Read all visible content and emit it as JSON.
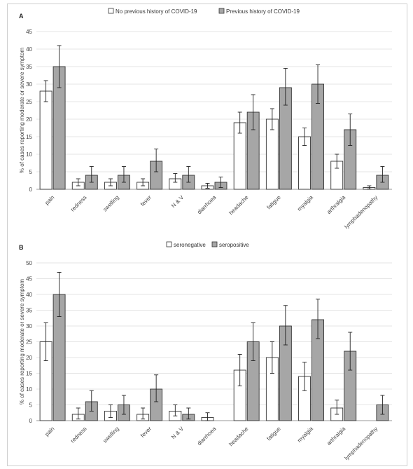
{
  "chart_data": [
    {
      "panel": "A",
      "type": "bar",
      "ylabel": "% of cases reporting moderate or severe symptom",
      "ylim": [
        0,
        45
      ],
      "yticks": [
        0,
        5,
        10,
        15,
        20,
        25,
        30,
        35,
        40,
        45
      ],
      "legend_position": "top",
      "categories": [
        "pain",
        "redness",
        "swelling",
        "fever",
        "N & V",
        "diarrhoea",
        "headache",
        "fatigue",
        "myalgia",
        "arthralgia",
        "lymphadenopathy"
      ],
      "series": [
        {
          "name": "No previous history of COVID-19",
          "color": "#ffffff",
          "values": [
            28,
            2,
            2,
            2,
            3,
            1,
            19,
            20,
            15,
            8,
            0.5
          ],
          "err_low": [
            25,
            1,
            1,
            1,
            2,
            0.3,
            16,
            17,
            12.5,
            6,
            0.1
          ],
          "err_high": [
            31,
            3,
            3,
            3,
            4.5,
            1.7,
            22,
            23,
            17.5,
            10,
            1
          ]
        },
        {
          "name": "Previous history of COVID-19",
          "color": "#a6a6a6",
          "values": [
            35,
            4,
            4,
            8,
            4,
            2,
            22,
            29,
            30,
            17,
            4
          ],
          "err_low": [
            29,
            2,
            2,
            5,
            2,
            0.5,
            17,
            24,
            24.5,
            12.5,
            2
          ],
          "err_high": [
            41,
            6.5,
            6.5,
            11.5,
            6.5,
            3.5,
            27,
            34.5,
            35.5,
            21.5,
            6.5
          ]
        }
      ]
    },
    {
      "panel": "B",
      "type": "bar",
      "ylabel": "% of cases reporting moderate or severe symptom",
      "ylim": [
        0,
        50
      ],
      "yticks": [
        0,
        5,
        10,
        15,
        20,
        25,
        30,
        35,
        40,
        45,
        50
      ],
      "legend_position": "top",
      "categories": [
        "pain",
        "redness",
        "swelling",
        "fever",
        "N & V",
        "diarrhoea",
        "headache",
        "fatigue",
        "myalgia",
        "arthralgia",
        "lymphadenopathy"
      ],
      "series": [
        {
          "name": "seronegative",
          "color": "#ffffff",
          "values": [
            25,
            2,
            3,
            2,
            3,
            1,
            16,
            20,
            14,
            4,
            0
          ],
          "err_low": [
            19,
            0.5,
            1,
            0.5,
            1.5,
            0,
            11,
            15,
            9.5,
            2,
            0
          ],
          "err_high": [
            31,
            4,
            5,
            4,
            5,
            2.5,
            21,
            25,
            18.5,
            6.5,
            0
          ]
        },
        {
          "name": "seropositive",
          "color": "#a6a6a6",
          "values": [
            40,
            6,
            5,
            10,
            2,
            0,
            25,
            30,
            32,
            22,
            5
          ],
          "err_low": [
            33,
            3,
            2,
            6,
            0.5,
            0,
            19,
            24,
            26,
            16,
            2
          ],
          "err_high": [
            47,
            9.5,
            8,
            14.5,
            4,
            0,
            31,
            36.5,
            38.5,
            28,
            8
          ]
        }
      ]
    }
  ]
}
